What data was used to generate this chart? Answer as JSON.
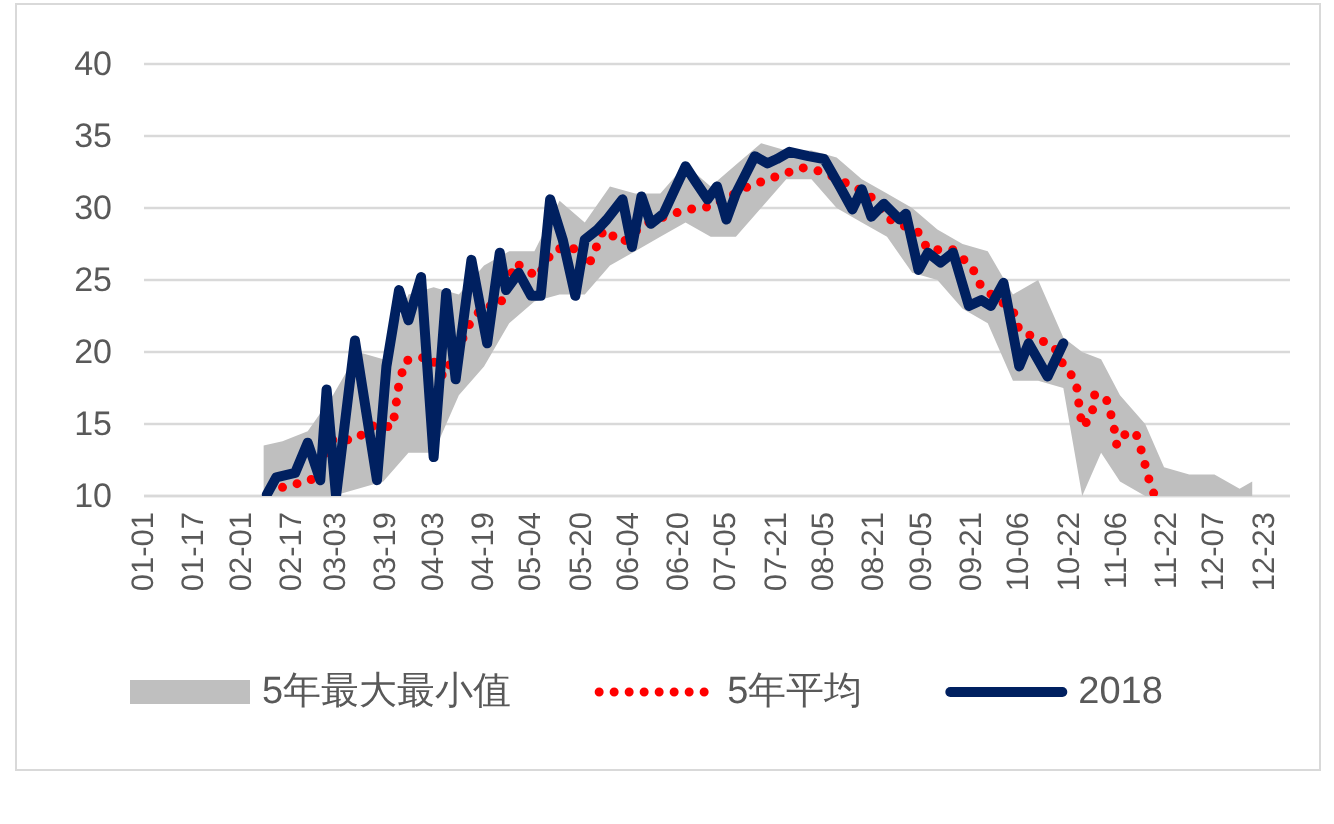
{
  "chart_data": {
    "type": "line",
    "grid": "y",
    "legend": "bottom",
    "xlim": [
      "--01-01",
      "--12-31"
    ],
    "xticks": [
      {
        "value": "--01-01",
        "label": "01-01"
      },
      {
        "value": "--01-17",
        "label": "01-17"
      },
      {
        "value": "--02-01",
        "label": "02-01"
      },
      {
        "value": "--02-17",
        "label": "02-17"
      },
      {
        "value": "--03-03",
        "label": "03-03"
      },
      {
        "value": "--03-19",
        "label": "03-19"
      },
      {
        "value": "--04-03",
        "label": "04-03"
      },
      {
        "value": "--04-19",
        "label": "04-19"
      },
      {
        "value": "--05-04",
        "label": "05-04"
      },
      {
        "value": "--05-20",
        "label": "05-20"
      },
      {
        "value": "--06-04",
        "label": "06-04"
      },
      {
        "value": "--06-20",
        "label": "06-20"
      },
      {
        "value": "--07-05",
        "label": "07-05"
      },
      {
        "value": "--07-21",
        "label": "07-21"
      },
      {
        "value": "--08-05",
        "label": "08-05"
      },
      {
        "value": "--08-21",
        "label": "08-21"
      },
      {
        "value": "--09-05",
        "label": "09-05"
      },
      {
        "value": "--09-21",
        "label": "09-21"
      },
      {
        "value": "--10-06",
        "label": "10-06"
      },
      {
        "value": "--10-22",
        "label": "10-22"
      },
      {
        "value": "--11-06",
        "label": "11-06"
      },
      {
        "value": "--11-22",
        "label": "11-22"
      },
      {
        "value": "--12-07",
        "label": "12-07"
      },
      {
        "value": "--12-23",
        "label": "12-23"
      }
    ],
    "ylim": [
      10,
      40
    ],
    "yticks": [
      10,
      15,
      20,
      25,
      30,
      35,
      40
    ],
    "series": [
      {
        "name": "5年最大最小值",
        "type": "line",
        "color": "#bfbfbf",
        "x": [
          "--02-08",
          "--02-14",
          "--02-22",
          "--03-02",
          "--03-10",
          "--03-18",
          "--03-26",
          "--04-03",
          "--04-11",
          "--04-19",
          "--04-27",
          "--05-05",
          "--05-13",
          "--05-21",
          "--05-29",
          "--06-06",
          "--06-14",
          "--06-22",
          "--06-30",
          "--07-08",
          "--07-16",
          "--07-24",
          "--08-01",
          "--08-09",
          "--08-17",
          "--08-25",
          "--09-02",
          "--09-10",
          "--09-18",
          "--09-26",
          "--10-04",
          "--10-12",
          "--10-20",
          "--10-26",
          "--11-01",
          "--11-07",
          "--11-15",
          "--11-21",
          "--11-29",
          "--12-07",
          "--12-15",
          "--12-19"
        ],
        "values": [
          null,
          null,
          null,
          null,
          null,
          null,
          null,
          null,
          null,
          null,
          null,
          null,
          null,
          null,
          null,
          null,
          null,
          null,
          null,
          null,
          null,
          null,
          null,
          null,
          null,
          null,
          null,
          null,
          null,
          null,
          null,
          null,
          null,
          null,
          null,
          null,
          null,
          null,
          null,
          null,
          null,
          null
        ],
        "lower": [
          10,
          10,
          10,
          10,
          10.5,
          11,
          13,
          13,
          17,
          19,
          22,
          23.5,
          24,
          24,
          26,
          27,
          28,
          29,
          28,
          28,
          30,
          32,
          32,
          30,
          29,
          28,
          25.5,
          25,
          23,
          22,
          18,
          18,
          17.5,
          10,
          13,
          11,
          10,
          10,
          10,
          10,
          10,
          10
        ],
        "upper": [
          13.5,
          13.8,
          14.5,
          17,
          20,
          19.5,
          24,
          24.5,
          24,
          26,
          27,
          27,
          30.5,
          29,
          31.5,
          31,
          31,
          33,
          31.5,
          33,
          34.5,
          34,
          34,
          33.5,
          32,
          31,
          30,
          28.5,
          27.5,
          27,
          24,
          25,
          21,
          20,
          19.5,
          17,
          15,
          12,
          11.5,
          11.5,
          10.5,
          11
        ]
      },
      {
        "name": "5年平均",
        "type": "line",
        "line_style": "dotted",
        "color": "#ff0000",
        "x": [
          "--02-14",
          "--02-23",
          "--03-02",
          "--03-09",
          "--03-15",
          "--03-21",
          "--03-23",
          "--03-25",
          "--04-02",
          "--04-06",
          "--04-10",
          "--04-15",
          "--04-19",
          "--04-24",
          "--04-29",
          "--05-06",
          "--05-11",
          "--05-17",
          "--05-22",
          "--05-27",
          "--06-02",
          "--06-09",
          "--06-18",
          "--06-23",
          "--06-30",
          "--07-12",
          "--07-17",
          "--07-29",
          "--08-05",
          "--08-15",
          "--08-19",
          "--08-26",
          "--09-04",
          "--09-07",
          "--09-15",
          "--09-21",
          "--09-24",
          "--10-04",
          "--10-06",
          "--10-13",
          "--10-17",
          "--10-20",
          "--10-24",
          "--10-25",
          "--10-26",
          "--10-29",
          "--10-30",
          "--11-03",
          "--11-05",
          "--11-06",
          "--11-09",
          "--11-12",
          "--11-14",
          "--11-16",
          "--11-18"
        ],
        "values": [
          10.6,
          11.1,
          13.9,
          13.9,
          14.9,
          14.8,
          17.8,
          19.4,
          19.7,
          18.3,
          19.9,
          22.2,
          23.2,
          23.2,
          26.2,
          25.2,
          27.1,
          27.3,
          25.9,
          28.5,
          27.6,
          28.9,
          29.6,
          29.9,
          30.1,
          31.5,
          31.9,
          32.8,
          32.5,
          31.4,
          31,
          29.2,
          28.3,
          27.1,
          27.1,
          25.9,
          24.5,
          22.9,
          21.5,
          20.8,
          20.4,
          19.1,
          18,
          16.3,
          14.8,
          15.5,
          17.1,
          16.6,
          14.9,
          13.5,
          14.4,
          14.4,
          13,
          11.3,
          10
        ]
      },
      {
        "name": "2018",
        "type": "line",
        "line_style": "solid",
        "color": "#002060",
        "x": [
          "--02-09",
          "--02-12",
          "--02-18",
          "--02-22",
          "--02-26",
          "--02-28",
          "--03-03",
          "--03-09",
          "--03-16",
          "--03-19",
          "--03-23",
          "--03-26",
          "--03-30",
          "--04-03",
          "--04-07",
          "--04-10",
          "--04-15",
          "--04-20",
          "--04-24",
          "--04-26",
          "--04-30",
          "--05-04",
          "--05-07",
          "--05-10",
          "--05-14",
          "--05-18",
          "--05-21",
          "--05-25",
          "--05-28",
          "--06-02",
          "--06-05",
          "--06-08",
          "--06-11",
          "--06-15",
          "--06-22",
          "--06-25",
          "--06-29",
          "--07-02",
          "--07-05",
          "--07-08",
          "--07-14",
          "--07-18",
          "--07-21",
          "--07-25",
          "--07-31",
          "--08-05",
          "--08-10",
          "--08-14",
          "--08-17",
          "--08-20",
          "--08-24",
          "--08-29",
          "--08-31",
          "--09-04",
          "--09-07",
          "--09-11",
          "--09-15",
          "--09-20",
          "--09-24",
          "--09-27",
          "--10-01",
          "--10-06",
          "--10-09",
          "--10-15",
          "--10-20"
        ],
        "values": [
          10.1,
          11.3,
          11.6,
          13.7,
          11.1,
          17.4,
          10,
          20.8,
          11.1,
          19,
          24.3,
          22.2,
          25.2,
          12.7,
          24.1,
          18.1,
          26.4,
          20.6,
          26.9,
          24.3,
          25.5,
          23.9,
          23.9,
          30.6,
          27.8,
          23.9,
          27.8,
          28.5,
          29.2,
          30.6,
          27.3,
          30.8,
          28.9,
          29.6,
          32.9,
          31.9,
          30.6,
          31.5,
          29.2,
          31,
          33.6,
          33.1,
          33.4,
          33.9,
          33.6,
          33.4,
          31.5,
          29.9,
          31.3,
          29.4,
          30.3,
          29.2,
          29.6,
          25.7,
          26.9,
          26.2,
          26.9,
          23.2,
          23.6,
          23.2,
          24.8,
          19,
          20.6,
          18.3,
          20.6
        ]
      }
    ]
  }
}
